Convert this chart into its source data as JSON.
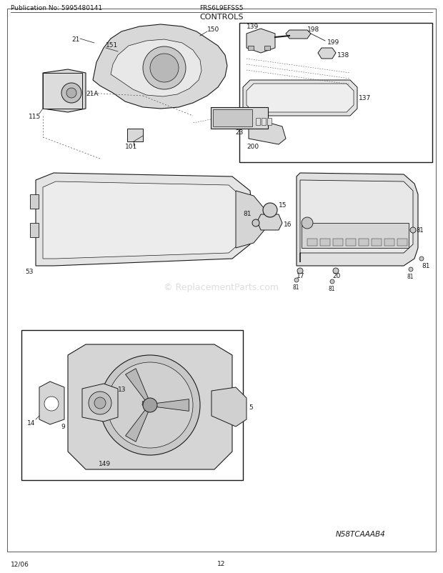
{
  "title": "CONTROLS",
  "pub_no": "Publication No: 5995480141",
  "model": "FRS6L9EFSS5",
  "diagram_code": "N58TCAAAB4",
  "date": "12/06",
  "page": "12",
  "bg": "#ffffff",
  "line_color": "#1a1a1a",
  "watermark": "© ReplacementParts.com",
  "watermark_color": "#bbbbbb"
}
